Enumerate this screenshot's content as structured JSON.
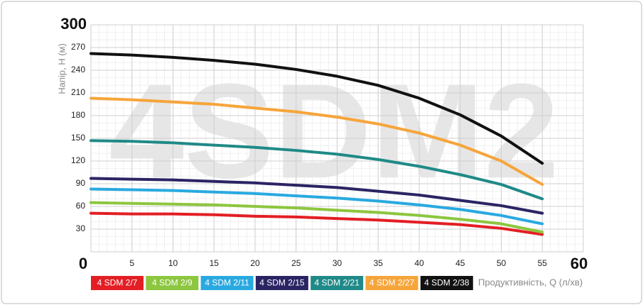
{
  "chart_data": {
    "type": "line",
    "watermark": "4SDM2",
    "y_label": "Напір, Н (м)",
    "x_label": "Продуктивність, Q (л/хв)",
    "x": [
      0,
      5,
      10,
      15,
      20,
      25,
      30,
      35,
      40,
      45,
      50,
      55
    ],
    "xlim": [
      0,
      60
    ],
    "xticks": [
      0,
      5,
      10,
      15,
      20,
      25,
      30,
      35,
      40,
      45,
      50,
      55,
      60
    ],
    "ylim": [
      0,
      300
    ],
    "yticks": [
      0,
      30,
      60,
      90,
      120,
      150,
      180,
      210,
      240,
      270,
      300
    ],
    "grid": true,
    "series": [
      {
        "name": "4 SDM 2/7",
        "color": "#e31e24",
        "values": [
          51,
          50,
          50,
          49,
          47,
          46,
          44,
          42,
          39,
          36,
          31,
          23
        ]
      },
      {
        "name": "4 SDM 2/9",
        "color": "#8dc63f",
        "values": [
          65,
          64,
          63,
          62,
          60,
          58,
          55,
          52,
          48,
          43,
          37,
          26
        ]
      },
      {
        "name": "4 SDM 2/11",
        "color": "#29a9e0",
        "values": [
          83,
          82,
          81,
          79,
          77,
          74,
          71,
          67,
          62,
          56,
          48,
          37
        ]
      },
      {
        "name": "4 SDM 2/15",
        "color": "#2b2464",
        "values": [
          97,
          96,
          95,
          93,
          91,
          88,
          85,
          80,
          75,
          68,
          61,
          51
        ]
      },
      {
        "name": "4 SDM 2/21",
        "color": "#1f8a87",
        "values": [
          147,
          146,
          144,
          141,
          138,
          134,
          129,
          122,
          113,
          102,
          89,
          70
        ]
      },
      {
        "name": "4 SDM 2/27",
        "color": "#f6a53b",
        "values": [
          203,
          201,
          198,
          195,
          190,
          185,
          178,
          169,
          157,
          141,
          120,
          89
        ]
      },
      {
        "name": "4 SDM 2/38",
        "color": "#111111",
        "values": [
          262,
          260,
          257,
          253,
          248,
          241,
          232,
          220,
          203,
          181,
          153,
          117
        ]
      }
    ]
  }
}
